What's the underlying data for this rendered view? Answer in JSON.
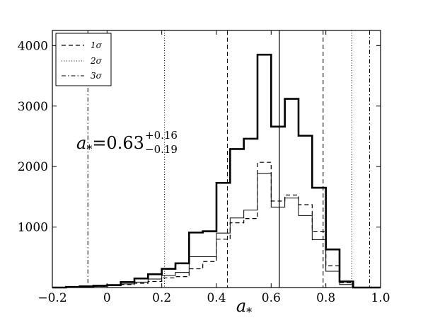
{
  "chart_data": {
    "type": "histogram",
    "title": "",
    "xlabel": "a",
    "xlabel_sub": "*",
    "ylabel": "",
    "xlim": [
      -0.2,
      1.0
    ],
    "ylim": [
      0,
      4250
    ],
    "x_ticks": [
      -0.2,
      0.0,
      0.2,
      0.4,
      0.6,
      0.8,
      1.0
    ],
    "x_tick_labels": [
      "−0.2",
      "0",
      "0.2",
      "0.4",
      "0.6",
      "0.8",
      "1.0"
    ],
    "y_ticks": [
      1000,
      2000,
      3000,
      4000
    ],
    "y_tick_labels": [
      "1000",
      "2000",
      "3000",
      "4000"
    ],
    "bin_edges": [
      -0.2,
      -0.15,
      -0.1,
      -0.05,
      0.0,
      0.05,
      0.1,
      0.15,
      0.2,
      0.25,
      0.3,
      0.35,
      0.4,
      0.45,
      0.5,
      0.55,
      0.6,
      0.65,
      0.7,
      0.75,
      0.8,
      0.85,
      0.9,
      0.95,
      1.0
    ],
    "series": [
      {
        "style": "thick-solid",
        "values": [
          0,
          10,
          20,
          30,
          40,
          90,
          150,
          220,
          310,
          400,
          910,
          930,
          1730,
          2290,
          2460,
          3850,
          2660,
          3120,
          2510,
          1650,
          630,
          100,
          0,
          0
        ]
      },
      {
        "style": "thin-solid",
        "values": [
          0,
          10,
          10,
          20,
          30,
          60,
          90,
          140,
          200,
          250,
          510,
          510,
          900,
          1150,
          1280,
          1890,
          1330,
          1480,
          1190,
          790,
          270,
          50,
          0,
          0
        ]
      },
      {
        "style": "dashed",
        "values": [
          0,
          10,
          10,
          20,
          30,
          50,
          70,
          100,
          160,
          180,
          310,
          430,
          800,
          1070,
          1140,
          2070,
          1430,
          1530,
          1370,
          930,
          360,
          80,
          0,
          0
        ]
      }
    ],
    "vlines": [
      {
        "x": 0.63,
        "style": "solid"
      },
      {
        "x": 0.44,
        "style": "dashed"
      },
      {
        "x": 0.79,
        "style": "dashed"
      },
      {
        "x": 0.21,
        "style": "dotted"
      },
      {
        "x": 0.895,
        "style": "dotted"
      },
      {
        "x": -0.07,
        "style": "dashdot"
      },
      {
        "x": 0.96,
        "style": "dashdot"
      }
    ],
    "legend": {
      "position": "top-left",
      "entries": [
        {
          "label": "1σ",
          "style": "dashed"
        },
        {
          "label": "2σ",
          "style": "dotted"
        },
        {
          "label": "3σ",
          "style": "dashdot"
        }
      ]
    },
    "annotation": {
      "var": "a",
      "sub": "*",
      "eq": "=0.63",
      "sup": "+0.16",
      "lower": "−0.19"
    },
    "grid": false
  }
}
